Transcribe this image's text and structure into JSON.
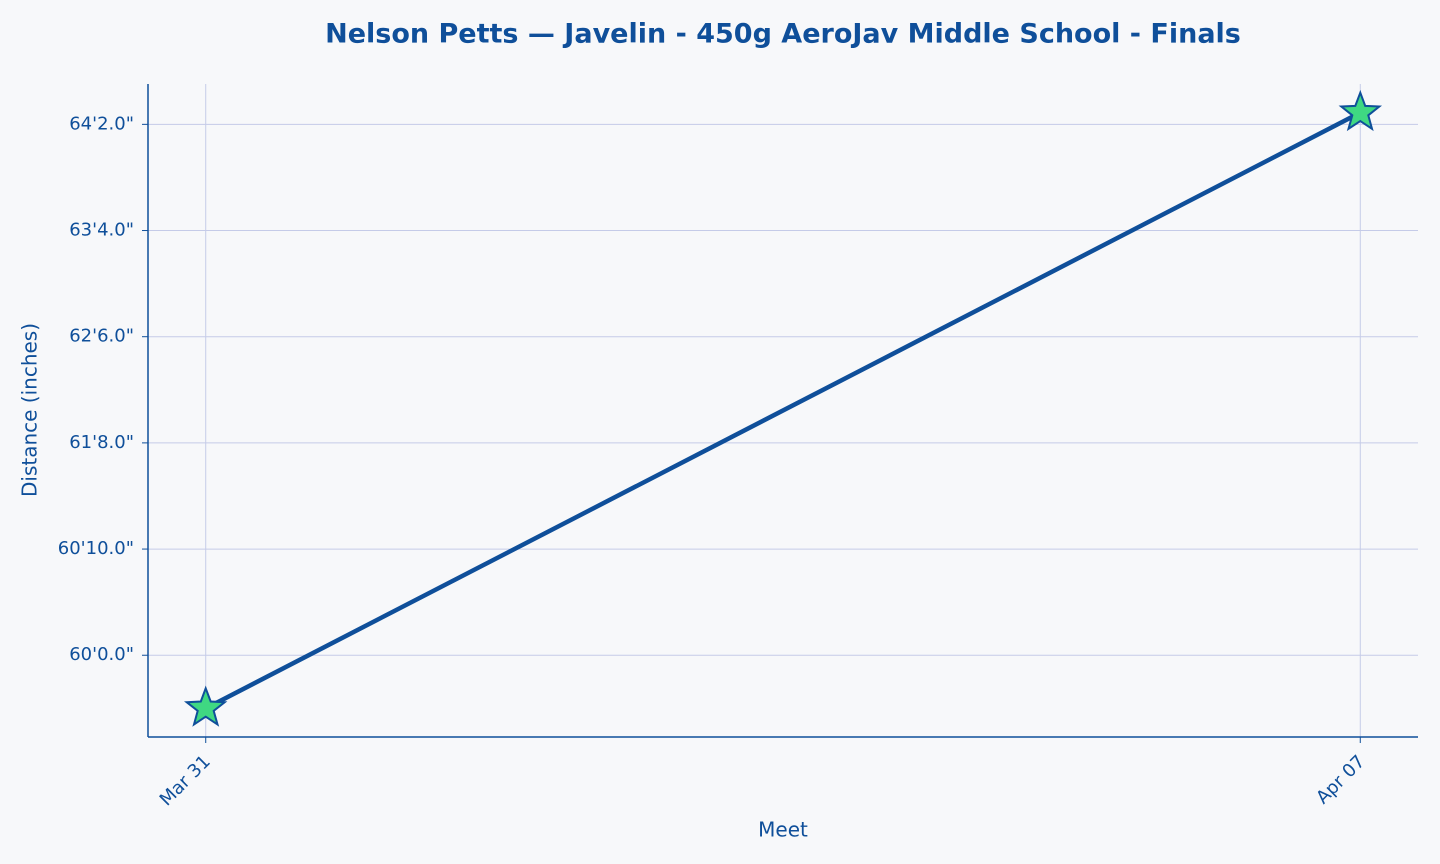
{
  "chart_data": {
    "type": "line",
    "title": "Nelson Petts — Javelin - 450g AeroJav Middle School - Finals",
    "x_label": "Meet",
    "y_label": "Distance (inches)",
    "categories": [
      "Mar 31",
      "Apr 07"
    ],
    "series": [
      {
        "color": "#0f4f9a",
        "marker_color": "#3fd882",
        "values": [
          715.0,
          771.1
        ]
      }
    ],
    "ylim": [
      712.3,
      773.8
    ],
    "yticks": [
      {
        "value": 720,
        "label": "60'0.0\""
      },
      {
        "value": 730,
        "label": "60'10.0\""
      },
      {
        "value": 740,
        "label": "61'8.0\""
      },
      {
        "value": 750,
        "label": "62'6.0\""
      },
      {
        "value": 760,
        "label": "63'4.0\""
      },
      {
        "value": 770,
        "label": "64'2.0\""
      }
    ],
    "grid": true
  }
}
